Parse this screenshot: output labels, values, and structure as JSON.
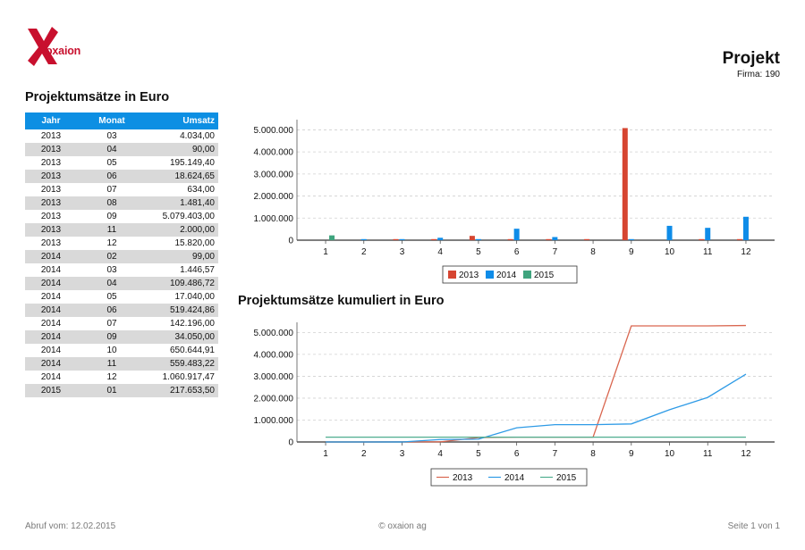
{
  "header": {
    "logo_text": "oxaion",
    "title": "Projekt",
    "firma_label": "Firma:",
    "firma_value": "190"
  },
  "table": {
    "title": "Projektumsätze in Euro",
    "columns": [
      "Jahr",
      "Monat",
      "Umsatz"
    ],
    "rows": [
      [
        "2013",
        "03",
        "4.034,00"
      ],
      [
        "2013",
        "04",
        "90,00"
      ],
      [
        "2013",
        "05",
        "195.149,40"
      ],
      [
        "2013",
        "06",
        "18.624,65"
      ],
      [
        "2013",
        "07",
        "634,00"
      ],
      [
        "2013",
        "08",
        "1.481,40"
      ],
      [
        "2013",
        "09",
        "5.079.403,00"
      ],
      [
        "2013",
        "11",
        "2.000,00"
      ],
      [
        "2013",
        "12",
        "15.820,00"
      ],
      [
        "2014",
        "02",
        "99,00"
      ],
      [
        "2014",
        "03",
        "1.446,57"
      ],
      [
        "2014",
        "04",
        "109.486,72"
      ],
      [
        "2014",
        "05",
        "17.040,00"
      ],
      [
        "2014",
        "06",
        "519.424,86"
      ],
      [
        "2014",
        "07",
        "142.196,00"
      ],
      [
        "2014",
        "09",
        "34.050,00"
      ],
      [
        "2014",
        "10",
        "650.644,91"
      ],
      [
        "2014",
        "11",
        "559.483,22"
      ],
      [
        "2014",
        "12",
        "1.060.917,47"
      ],
      [
        "2015",
        "01",
        "217.653,50"
      ]
    ]
  },
  "chart_titles": {
    "chart2": "Projektumsätze kumuliert in Euro"
  },
  "chart_data": [
    {
      "type": "bar",
      "categories": [
        "1",
        "2",
        "3",
        "4",
        "5",
        "6",
        "7",
        "8",
        "9",
        "10",
        "11",
        "12"
      ],
      "series": [
        {
          "name": "2013",
          "color": "#d64531",
          "values": [
            0,
            0,
            4034,
            90,
            195149.4,
            18624.65,
            634,
            1481.4,
            5079403,
            0,
            2000,
            15820
          ]
        },
        {
          "name": "2014",
          "color": "#0f8ce8",
          "values": [
            0,
            99,
            1446.57,
            109486.72,
            17040,
            519424.86,
            142196,
            0,
            34050,
            650644.91,
            559483.22,
            1060917.47
          ]
        },
        {
          "name": "2015",
          "color": "#3fa47e",
          "values": [
            217653.5,
            0,
            0,
            0,
            0,
            0,
            0,
            0,
            0,
            0,
            0,
            0
          ]
        }
      ],
      "y_ticks": [
        0,
        1000000,
        2000000,
        3000000,
        4000000,
        5000000
      ],
      "y_tick_labels": [
        "0",
        "1.000.000",
        "2.000.000",
        "3.000.000",
        "4.000.000",
        "5.000.000"
      ],
      "ylim": [
        0,
        5300000
      ],
      "grid": true,
      "legend_position": "bottom-center"
    },
    {
      "type": "line",
      "title": "Projektumsätze kumuliert in Euro",
      "categories": [
        "1",
        "2",
        "3",
        "4",
        "5",
        "6",
        "7",
        "8",
        "9",
        "10",
        "11",
        "12"
      ],
      "series": [
        {
          "name": "2013",
          "color": "#d9664f",
          "values": [
            0,
            0,
            4034,
            4124,
            199273.4,
            217898.05,
            218532.05,
            220013.45,
            5299416.45,
            5299416.45,
            5301416.45,
            5317236.45
          ]
        },
        {
          "name": "2014",
          "color": "#2f9be6",
          "values": [
            0,
            99,
            1545.57,
            111032.29,
            128072.29,
            647497.15,
            789693.15,
            789693.15,
            823743.15,
            1474388.06,
            2033871.28,
            3094788.75
          ]
        },
        {
          "name": "2015",
          "color": "#4fae8f",
          "values": [
            217653.5,
            217653.5,
            217653.5,
            217653.5,
            217653.5,
            217653.5,
            217653.5,
            217653.5,
            217653.5,
            217653.5,
            217653.5,
            217653.5
          ]
        }
      ],
      "y_ticks": [
        0,
        1000000,
        2000000,
        3000000,
        4000000,
        5000000
      ],
      "y_tick_labels": [
        "0",
        "1.000.000",
        "2.000.000",
        "3.000.000",
        "4.000.000",
        "5.000.000"
      ],
      "ylim": [
        0,
        5300000
      ],
      "grid": true,
      "legend_position": "bottom-center"
    }
  ],
  "footer": {
    "left": "Abruf vom: 12.02.2015",
    "center": "© oxaion ag",
    "right": "Seite 1 von 1"
  }
}
